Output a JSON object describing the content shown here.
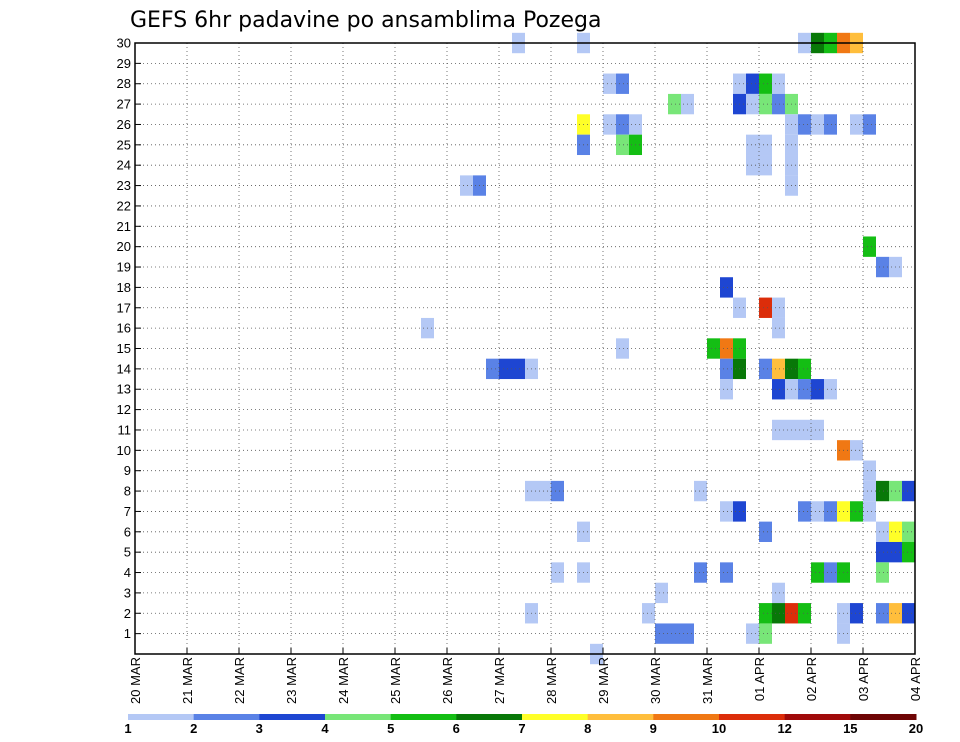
{
  "chart_data": {
    "type": "heatmap",
    "title": "GEFS 6hr padavine po ansamblima Pozega",
    "xlabel": "",
    "ylabel": "",
    "x_tick_labels": [
      "20 MAR",
      "21 MAR",
      "22 MAR",
      "23 MAR",
      "24 MAR",
      "25 MAR",
      "26 MAR",
      "27 MAR",
      "28 MAR",
      "29 MAR",
      "30 MAR",
      "31 MAR",
      "01 APR",
      "02 APR",
      "03 APR",
      "04 APR"
    ],
    "y_tick_labels": [
      "1",
      "2",
      "3",
      "4",
      "5",
      "6",
      "7",
      "8",
      "9",
      "10",
      "11",
      "12",
      "13",
      "14",
      "15",
      "16",
      "17",
      "18",
      "19",
      "20",
      "21",
      "22",
      "23",
      "24",
      "25",
      "26",
      "27",
      "28",
      "29",
      "30"
    ],
    "x_unit": "6-hour step from 20 MAR 00Z",
    "xlim": [
      0,
      60
    ],
    "ylim": [
      0,
      30
    ],
    "grid": true,
    "legend": {
      "placement": "bottom",
      "thresholds": [
        "1",
        "2",
        "3",
        "4",
        "5",
        "6",
        "7",
        "8",
        "9",
        "10",
        "12",
        "15",
        "20"
      ],
      "colors": [
        "#b4c8f5",
        "#5a82e6",
        "#1e46d2",
        "#78e678",
        "#14be14",
        "#087808",
        "#ffff28",
        "#ffbe3c",
        "#f07814",
        "#dc2d0a",
        "#a00a0a",
        "#6e0505"
      ]
    },
    "cells": [
      {
        "member": 30,
        "step": 29.5,
        "class": 0
      },
      {
        "member": 30,
        "step": 34.5,
        "class": 0
      },
      {
        "member": 30,
        "step": 51.5,
        "class": 0
      },
      {
        "member": 30,
        "step": 52.5,
        "class": 5
      },
      {
        "member": 30,
        "step": 53.5,
        "class": 4
      },
      {
        "member": 30,
        "step": 54.5,
        "class": 8
      },
      {
        "member": 30,
        "step": 55.5,
        "class": 7
      },
      {
        "member": 28,
        "step": 36.5,
        "class": 0
      },
      {
        "member": 28,
        "step": 37.5,
        "class": 1
      },
      {
        "member": 28,
        "step": 46.5,
        "class": 0
      },
      {
        "member": 28,
        "step": 47.5,
        "class": 2
      },
      {
        "member": 28,
        "step": 48.5,
        "class": 4
      },
      {
        "member": 28,
        "step": 49.5,
        "class": 0
      },
      {
        "member": 27,
        "step": 41.5,
        "class": 3
      },
      {
        "member": 27,
        "step": 42.5,
        "class": 0
      },
      {
        "member": 27,
        "step": 46.5,
        "class": 2
      },
      {
        "member": 27,
        "step": 47.5,
        "class": 0
      },
      {
        "member": 27,
        "step": 48.5,
        "class": 3
      },
      {
        "member": 27,
        "step": 49.5,
        "class": 1
      },
      {
        "member": 27,
        "step": 50.5,
        "class": 3
      },
      {
        "member": 26,
        "step": 34.5,
        "class": 6
      },
      {
        "member": 26,
        "step": 36.5,
        "class": 0
      },
      {
        "member": 26,
        "step": 37.5,
        "class": 1
      },
      {
        "member": 26,
        "step": 38.5,
        "class": 0
      },
      {
        "member": 26,
        "step": 50.5,
        "class": 0
      },
      {
        "member": 26,
        "step": 51.5,
        "class": 1
      },
      {
        "member": 26,
        "step": 52.5,
        "class": 0
      },
      {
        "member": 26,
        "step": 53.5,
        "class": 1
      },
      {
        "member": 26,
        "step": 55.5,
        "class": 0
      },
      {
        "member": 26,
        "step": 56.5,
        "class": 1
      },
      {
        "member": 25,
        "step": 34.5,
        "class": 1
      },
      {
        "member": 25,
        "step": 37.5,
        "class": 3
      },
      {
        "member": 25,
        "step": 38.5,
        "class": 4
      },
      {
        "member": 25,
        "step": 47.5,
        "class": 0
      },
      {
        "member": 25,
        "step": 48.5,
        "class": 0
      },
      {
        "member": 25,
        "step": 50.5,
        "class": 0
      },
      {
        "member": 24,
        "step": 47.5,
        "class": 0
      },
      {
        "member": 24,
        "step": 48.5,
        "class": 0
      },
      {
        "member": 24,
        "step": 50.5,
        "class": 0
      },
      {
        "member": 23,
        "step": 25.5,
        "class": 0
      },
      {
        "member": 23,
        "step": 26.5,
        "class": 1
      },
      {
        "member": 23,
        "step": 50.5,
        "class": 0
      },
      {
        "member": 20,
        "step": 56.5,
        "class": 4
      },
      {
        "member": 19,
        "step": 57.5,
        "class": 1
      },
      {
        "member": 19,
        "step": 58.5,
        "class": 0
      },
      {
        "member": 18,
        "step": 45.5,
        "class": 2
      },
      {
        "member": 17,
        "step": 46.5,
        "class": 0
      },
      {
        "member": 17,
        "step": 48.5,
        "class": 9
      },
      {
        "member": 17,
        "step": 49.5,
        "class": 0
      },
      {
        "member": 16,
        "step": 22.5,
        "class": 0
      },
      {
        "member": 16,
        "step": 49.5,
        "class": 0
      },
      {
        "member": 15,
        "step": 37.5,
        "class": 0
      },
      {
        "member": 15,
        "step": 44.5,
        "class": 4
      },
      {
        "member": 15,
        "step": 45.5,
        "class": 8
      },
      {
        "member": 15,
        "step": 46.5,
        "class": 4
      },
      {
        "member": 14,
        "step": 27.5,
        "class": 1
      },
      {
        "member": 14,
        "step": 28.5,
        "class": 2
      },
      {
        "member": 14,
        "step": 29.5,
        "class": 2
      },
      {
        "member": 14,
        "step": 30.5,
        "class": 0
      },
      {
        "member": 14,
        "step": 45.5,
        "class": 1
      },
      {
        "member": 14,
        "step": 46.5,
        "class": 5
      },
      {
        "member": 14,
        "step": 48.5,
        "class": 1
      },
      {
        "member": 14,
        "step": 49.5,
        "class": 7
      },
      {
        "member": 14,
        "step": 50.5,
        "class": 5
      },
      {
        "member": 14,
        "step": 51.5,
        "class": 4
      },
      {
        "member": 13,
        "step": 45.5,
        "class": 0
      },
      {
        "member": 13,
        "step": 49.5,
        "class": 2
      },
      {
        "member": 13,
        "step": 50.5,
        "class": 0
      },
      {
        "member": 13,
        "step": 51.5,
        "class": 1
      },
      {
        "member": 13,
        "step": 52.5,
        "class": 2
      },
      {
        "member": 13,
        "step": 53.5,
        "class": 0
      },
      {
        "member": 11,
        "step": 49.5,
        "class": 0
      },
      {
        "member": 11,
        "step": 50.5,
        "class": 0
      },
      {
        "member": 11,
        "step": 51.5,
        "class": 0
      },
      {
        "member": 11,
        "step": 52.5,
        "class": 0
      },
      {
        "member": 10,
        "step": 54.5,
        "class": 8
      },
      {
        "member": 10,
        "step": 55.5,
        "class": 0
      },
      {
        "member": 9,
        "step": 56.5,
        "class": 0
      },
      {
        "member": 8,
        "step": 30.5,
        "class": 0
      },
      {
        "member": 8,
        "step": 31.5,
        "class": 0
      },
      {
        "member": 8,
        "step": 32.5,
        "class": 1
      },
      {
        "member": 8,
        "step": 43.5,
        "class": 0
      },
      {
        "member": 8,
        "step": 56.5,
        "class": 0
      },
      {
        "member": 8,
        "step": 57.5,
        "class": 5
      },
      {
        "member": 8,
        "step": 58.5,
        "class": 3
      },
      {
        "member": 8,
        "step": 59.5,
        "class": 2
      },
      {
        "member": 7,
        "step": 45.5,
        "class": 0
      },
      {
        "member": 7,
        "step": 46.5,
        "class": 2
      },
      {
        "member": 7,
        "step": 51.5,
        "class": 1
      },
      {
        "member": 7,
        "step": 52.5,
        "class": 0
      },
      {
        "member": 7,
        "step": 53.5,
        "class": 1
      },
      {
        "member": 7,
        "step": 54.5,
        "class": 6
      },
      {
        "member": 7,
        "step": 55.5,
        "class": 4
      },
      {
        "member": 7,
        "step": 56.5,
        "class": 0
      },
      {
        "member": 6,
        "step": 34.5,
        "class": 0
      },
      {
        "member": 6,
        "step": 48.5,
        "class": 1
      },
      {
        "member": 6,
        "step": 57.5,
        "class": 0
      },
      {
        "member": 6,
        "step": 58.5,
        "class": 6
      },
      {
        "member": 6,
        "step": 59.5,
        "class": 3
      },
      {
        "member": 5,
        "step": 57.5,
        "class": 2
      },
      {
        "member": 5,
        "step": 58.5,
        "class": 2
      },
      {
        "member": 5,
        "step": 59.5,
        "class": 4
      },
      {
        "member": 4,
        "step": 32.5,
        "class": 0
      },
      {
        "member": 4,
        "step": 34.5,
        "class": 0
      },
      {
        "member": 4,
        "step": 43.5,
        "class": 1
      },
      {
        "member": 4,
        "step": 45.5,
        "class": 1
      },
      {
        "member": 4,
        "step": 52.5,
        "class": 4
      },
      {
        "member": 4,
        "step": 53.5,
        "class": 1
      },
      {
        "member": 4,
        "step": 54.5,
        "class": 4
      },
      {
        "member": 4,
        "step": 57.5,
        "class": 3
      },
      {
        "member": 3,
        "step": 40.5,
        "class": 0
      },
      {
        "member": 3,
        "step": 49.5,
        "class": 0
      },
      {
        "member": 2,
        "step": 30.5,
        "class": 0
      },
      {
        "member": 2,
        "step": 39.5,
        "class": 0
      },
      {
        "member": 2,
        "step": 48.5,
        "class": 4
      },
      {
        "member": 2,
        "step": 49.5,
        "class": 5
      },
      {
        "member": 2,
        "step": 50.5,
        "class": 9
      },
      {
        "member": 2,
        "step": 51.5,
        "class": 4
      },
      {
        "member": 2,
        "step": 54.5,
        "class": 0
      },
      {
        "member": 2,
        "step": 55.5,
        "class": 2
      },
      {
        "member": 2,
        "step": 57.5,
        "class": 1
      },
      {
        "member": 2,
        "step": 58.5,
        "class": 7
      },
      {
        "member": 2,
        "step": 59.5,
        "class": 2
      },
      {
        "member": 1,
        "step": 40.5,
        "class": 1
      },
      {
        "member": 1,
        "step": 41.5,
        "class": 1
      },
      {
        "member": 1,
        "step": 42.5,
        "class": 1
      },
      {
        "member": 1,
        "step": 47.5,
        "class": 0
      },
      {
        "member": 1,
        "step": 48.5,
        "class": 3
      },
      {
        "member": 1,
        "step": 54.5,
        "class": 0
      },
      {
        "member": 0,
        "step": 35.5,
        "class": 0
      }
    ]
  }
}
